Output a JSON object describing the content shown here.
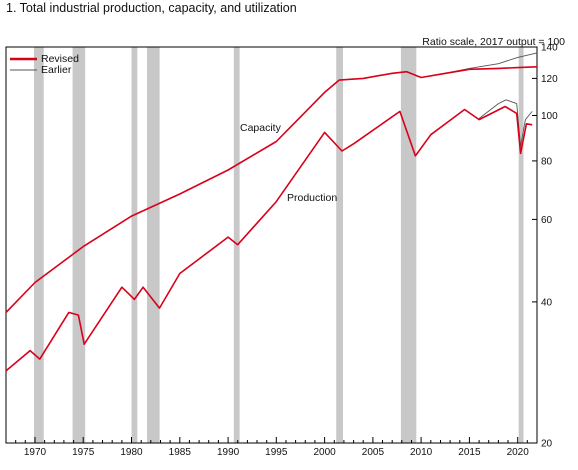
{
  "figure": {
    "title": "1. Total industrial production, capacity, and utilization"
  },
  "chart_data": {
    "type": "line",
    "scale": "log",
    "ylim": [
      20,
      140
    ],
    "xlim": [
      1967,
      2022
    ],
    "y_ticks": [
      20,
      40,
      60,
      80,
      100,
      120,
      140
    ],
    "x_ticks": [
      1970,
      1975,
      1980,
      1985,
      1990,
      1995,
      2000,
      2005,
      2010,
      2015,
      2020
    ],
    "annotation_scale": "Ratio scale, 2017 output = 100",
    "labels": {
      "capacity": "Capacity",
      "production": "Production"
    },
    "legend": {
      "placement": "top-left",
      "entries": [
        "Revised",
        "Earlier"
      ]
    },
    "recessions": [
      [
        1969.9,
        1970.9
      ],
      [
        1973.9,
        1975.2
      ],
      [
        1980.0,
        1980.6
      ],
      [
        1981.6,
        1982.9
      ],
      [
        1990.6,
        1991.2
      ],
      [
        2001.2,
        2001.9
      ],
      [
        2007.9,
        2009.5
      ],
      [
        2020.1,
        2020.6
      ]
    ],
    "series": [
      {
        "name": "Revised",
        "color": "#d9001a",
        "capacity": [
          [
            1967.0,
            38.0
          ],
          [
            1970.0,
            44.0
          ],
          [
            1975.0,
            52.5
          ],
          [
            1980.0,
            61.0
          ],
          [
            1985.0,
            68.0
          ],
          [
            1990.0,
            76.5
          ],
          [
            1995.0,
            88.0
          ],
          [
            2000.0,
            112.0
          ],
          [
            2001.5,
            119.0
          ],
          [
            2004.0,
            120.0
          ],
          [
            2007.0,
            123.0
          ],
          [
            2008.5,
            124.0
          ],
          [
            2010.0,
            120.5
          ],
          [
            2012.0,
            122.5
          ],
          [
            2015.0,
            125.5
          ],
          [
            2018.0,
            126.0
          ],
          [
            2020.0,
            126.5
          ],
          [
            2022.0,
            127.0
          ]
        ],
        "production": [
          [
            1967.0,
            28.5
          ],
          [
            1969.5,
            31.5
          ],
          [
            1970.5,
            30.2
          ],
          [
            1973.5,
            38.0
          ],
          [
            1974.5,
            37.5
          ],
          [
            1975.1,
            32.5
          ],
          [
            1979.0,
            43.0
          ],
          [
            1980.3,
            40.5
          ],
          [
            1981.2,
            43.0
          ],
          [
            1982.9,
            38.8
          ],
          [
            1985.0,
            46.0
          ],
          [
            1990.0,
            55.0
          ],
          [
            1991.0,
            53.0
          ],
          [
            1995.0,
            65.5
          ],
          [
            2000.0,
            92.0
          ],
          [
            2001.8,
            84.0
          ],
          [
            2003.0,
            87.0
          ],
          [
            2007.8,
            102.0
          ],
          [
            2009.4,
            82.0
          ],
          [
            2011.0,
            91.0
          ],
          [
            2014.5,
            103.0
          ],
          [
            2016.0,
            98.0
          ],
          [
            2018.7,
            104.5
          ],
          [
            2019.9,
            101.0
          ],
          [
            2020.3,
            83.0
          ],
          [
            2020.9,
            96.0
          ],
          [
            2021.5,
            95.5
          ]
        ]
      },
      {
        "name": "Earlier",
        "color": "#555555",
        "capacity": [
          [
            2012.0,
            122.5
          ],
          [
            2015.0,
            126.0
          ],
          [
            2018.0,
            129.0
          ],
          [
            2020.0,
            133.0
          ],
          [
            2022.0,
            136.0
          ]
        ],
        "production": [
          [
            2016.0,
            98.5
          ],
          [
            2018.0,
            106.0
          ],
          [
            2018.8,
            108.0
          ],
          [
            2019.9,
            106.0
          ],
          [
            2020.3,
            86.0
          ],
          [
            2020.8,
            98.0
          ],
          [
            2021.5,
            102.0
          ]
        ]
      }
    ]
  }
}
